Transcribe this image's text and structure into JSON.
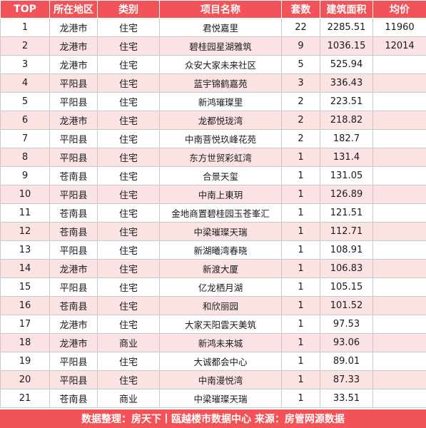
{
  "table": {
    "headers": [
      "TOP",
      "所在地区",
      "类别",
      "项目名称",
      "套数",
      "建筑面积",
      "均价"
    ],
    "rows": [
      {
        "top": "1",
        "area": "龙港市",
        "type": "住宅",
        "name": "君悦嘉里",
        "units": "22",
        "size": "2285.51",
        "price": "11960"
      },
      {
        "top": "2",
        "area": "龙港市",
        "type": "住宅",
        "name": "碧桂园星湖雅筑",
        "units": "9",
        "size": "1036.15",
        "price": "12014"
      },
      {
        "top": "3",
        "area": "龙港市",
        "type": "住宅",
        "name": "众安大家未来社区",
        "units": "5",
        "size": "525.94",
        "price": ""
      },
      {
        "top": "4",
        "area": "平阳县",
        "type": "住宅",
        "name": "蓝宇锦鹤嘉苑",
        "units": "3",
        "size": "336.43",
        "price": ""
      },
      {
        "top": "5",
        "area": "平阳县",
        "type": "住宅",
        "name": "新鸿璀璨里",
        "units": "2",
        "size": "223.51",
        "price": ""
      },
      {
        "top": "6",
        "area": "龙港市",
        "type": "住宅",
        "name": "龙都悦珑湾",
        "units": "2",
        "size": "218.82",
        "price": ""
      },
      {
        "top": "7",
        "area": "平阳县",
        "type": "住宅",
        "name": "中南菩悦玖峰花苑",
        "units": "2",
        "size": "182.7",
        "price": ""
      },
      {
        "top": "8",
        "area": "平阳县",
        "type": "住宅",
        "name": "东方世贸彩虹湾",
        "units": "1",
        "size": "131.4",
        "price": ""
      },
      {
        "top": "9",
        "area": "苍南县",
        "type": "住宅",
        "name": "合景天玺",
        "units": "1",
        "size": "131.05",
        "price": ""
      },
      {
        "top": "10",
        "area": "平阳县",
        "type": "住宅",
        "name": "中南上東玥",
        "units": "1",
        "size": "126.89",
        "price": ""
      },
      {
        "top": "11",
        "area": "苍南县",
        "type": "住宅",
        "name": "金地商置碧桂园玉苍峯汇",
        "units": "1",
        "size": "121.51",
        "price": ""
      },
      {
        "top": "12",
        "area": "苍南县",
        "type": "住宅",
        "name": "中梁璀璨天瑞",
        "units": "1",
        "size": "112.71",
        "price": ""
      },
      {
        "top": "13",
        "area": "平阳县",
        "type": "住宅",
        "name": "新湖曦湾春晓",
        "units": "1",
        "size": "108.91",
        "price": ""
      },
      {
        "top": "14",
        "area": "龙港市",
        "type": "住宅",
        "name": "新渡大厦",
        "units": "1",
        "size": "106.83",
        "price": ""
      },
      {
        "top": "15",
        "area": "平阳县",
        "type": "住宅",
        "name": "亿龙栖月湖",
        "units": "1",
        "size": "105.15",
        "price": ""
      },
      {
        "top": "16",
        "area": "苍南县",
        "type": "住宅",
        "name": "和欣丽园",
        "units": "1",
        "size": "101.52",
        "price": ""
      },
      {
        "top": "17",
        "area": "龙港市",
        "type": "住宅",
        "name": "大家天阳雲天美筑",
        "units": "1",
        "size": "97.53",
        "price": ""
      },
      {
        "top": "18",
        "area": "龙港市",
        "type": "商业",
        "name": "新鸿未来城",
        "units": "1",
        "size": "93.06",
        "price": ""
      },
      {
        "top": "19",
        "area": "平阳县",
        "type": "住宅",
        "name": "大诚都会中心",
        "units": "1",
        "size": "89.01",
        "price": ""
      },
      {
        "top": "20",
        "area": "平阳县",
        "type": "住宅",
        "name": "中南漫悦湾",
        "units": "1",
        "size": "87.33",
        "price": ""
      },
      {
        "top": "21",
        "area": "苍南县",
        "type": "商业",
        "name": "中梁璀璨天瑞",
        "units": "1",
        "size": "33.51",
        "price": ""
      }
    ]
  },
  "footer": {
    "text": "数据整理：房天下丨瓯越楼市数据中心  来源：房管网源数据"
  },
  "colors": {
    "header_bg": "#f25358",
    "stripe_bg": "#fbe3e4"
  }
}
